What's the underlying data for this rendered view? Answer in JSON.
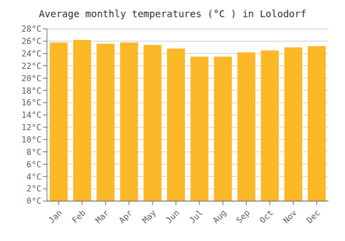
{
  "chart_data": {
    "type": "bar",
    "title": "Average monthly temperatures (°C ) in Lolodorf",
    "categories": [
      "Jan",
      "Feb",
      "Mar",
      "Apr",
      "May",
      "Jun",
      "Jul",
      "Aug",
      "Sep",
      "Oct",
      "Nov",
      "Dec"
    ],
    "values": [
      25.8,
      26.2,
      25.6,
      25.8,
      25.4,
      24.8,
      23.5,
      23.5,
      24.2,
      24.5,
      25.0,
      25.2
    ],
    "color": "#FDB827",
    "ylim": [
      0,
      28
    ],
    "yticks": [
      {
        "value": 0,
        "label": "0°C"
      },
      {
        "value": 2,
        "label": "2°C"
      },
      {
        "value": 4,
        "label": "4°C"
      },
      {
        "value": 6,
        "label": "6°C"
      },
      {
        "value": 8,
        "label": "8°C"
      },
      {
        "value": 10,
        "label": "10°C"
      },
      {
        "value": 12,
        "label": "12°C"
      },
      {
        "value": 14,
        "label": "14°C"
      },
      {
        "value": 16,
        "label": "16°C"
      },
      {
        "value": 18,
        "label": "18°C"
      },
      {
        "value": 20,
        "label": "20°C"
      },
      {
        "value": 22,
        "label": "22°C"
      },
      {
        "value": 24,
        "label": "24°C"
      },
      {
        "value": 26,
        "label": "26°C"
      },
      {
        "value": 28,
        "label": "28°C"
      }
    ],
    "grid": true
  }
}
